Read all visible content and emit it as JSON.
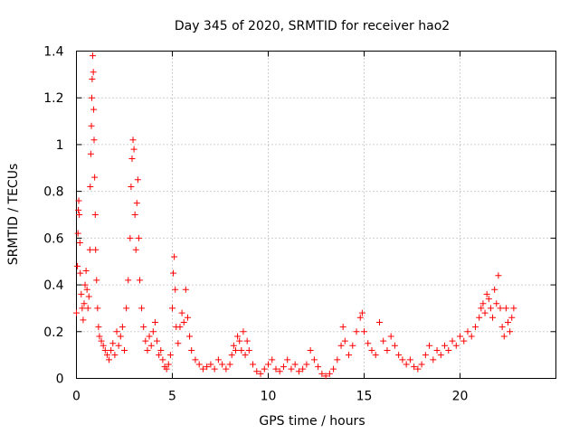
{
  "chart_data": {
    "type": "scatter",
    "title": "Day 345 of 2020, SRMTID for receiver hao2",
    "xlabel": "GPS time / hours",
    "ylabel": "SRMTID / TECUs",
    "xlim": [
      0,
      25
    ],
    "ylim": [
      0,
      1.4
    ],
    "x_ticks": [
      0,
      5,
      10,
      15,
      20
    ],
    "y_ticks": [
      0,
      0.2,
      0.4,
      0.6,
      0.8,
      1.0,
      1.2,
      1.4
    ],
    "x_tick_labels": [
      "0",
      "5",
      "10",
      "15",
      "20"
    ],
    "y_tick_labels": [
      "0",
      "0.2",
      "0.4",
      "0.6",
      "0.8",
      "1",
      "1.2",
      "1.4"
    ],
    "grid": true,
    "marker": "+",
    "color": "#ff0000",
    "series": [
      {
        "name": "SRMTID",
        "points": [
          [
            0.0,
            0.28
          ],
          [
            0.05,
            0.48
          ],
          [
            0.08,
            0.62
          ],
          [
            0.1,
            0.72
          ],
          [
            0.12,
            0.76
          ],
          [
            0.15,
            0.7
          ],
          [
            0.18,
            0.58
          ],
          [
            0.2,
            0.45
          ],
          [
            0.25,
            0.36
          ],
          [
            0.3,
            0.3
          ],
          [
            0.35,
            0.25
          ],
          [
            0.4,
            0.32
          ],
          [
            0.45,
            0.4
          ],
          [
            0.5,
            0.46
          ],
          [
            0.55,
            0.38
          ],
          [
            0.6,
            0.3
          ],
          [
            0.65,
            0.35
          ],
          [
            0.7,
            0.55
          ],
          [
            0.72,
            0.82
          ],
          [
            0.75,
            0.96
          ],
          [
            0.78,
            1.08
          ],
          [
            0.8,
            1.2
          ],
          [
            0.82,
            1.28
          ],
          [
            0.85,
            1.38
          ],
          [
            0.88,
            1.31
          ],
          [
            0.9,
            1.15
          ],
          [
            0.92,
            1.02
          ],
          [
            0.95,
            0.86
          ],
          [
            0.98,
            0.7
          ],
          [
            1.0,
            0.55
          ],
          [
            1.05,
            0.42
          ],
          [
            1.1,
            0.3
          ],
          [
            1.15,
            0.22
          ],
          [
            1.2,
            0.18
          ],
          [
            1.3,
            0.16
          ],
          [
            1.4,
            0.14
          ],
          [
            1.5,
            0.12
          ],
          [
            1.6,
            0.1
          ],
          [
            1.7,
            0.08
          ],
          [
            1.8,
            0.12
          ],
          [
            1.9,
            0.15
          ],
          [
            2.0,
            0.1
          ],
          [
            2.1,
            0.2
          ],
          [
            2.2,
            0.14
          ],
          [
            2.3,
            0.18
          ],
          [
            2.4,
            0.22
          ],
          [
            2.5,
            0.12
          ],
          [
            2.6,
            0.3
          ],
          [
            2.7,
            0.42
          ],
          [
            2.8,
            0.6
          ],
          [
            2.85,
            0.82
          ],
          [
            2.9,
            0.94
          ],
          [
            2.95,
            1.02
          ],
          [
            3.0,
            0.98
          ],
          [
            3.05,
            0.7
          ],
          [
            3.1,
            0.55
          ],
          [
            3.15,
            0.75
          ],
          [
            3.2,
            0.85
          ],
          [
            3.25,
            0.6
          ],
          [
            3.3,
            0.42
          ],
          [
            3.4,
            0.3
          ],
          [
            3.5,
            0.22
          ],
          [
            3.6,
            0.16
          ],
          [
            3.7,
            0.12
          ],
          [
            3.8,
            0.18
          ],
          [
            3.9,
            0.14
          ],
          [
            4.0,
            0.2
          ],
          [
            4.1,
            0.24
          ],
          [
            4.2,
            0.16
          ],
          [
            4.3,
            0.1
          ],
          [
            4.4,
            0.12
          ],
          [
            4.5,
            0.08
          ],
          [
            4.6,
            0.05
          ],
          [
            4.7,
            0.04
          ],
          [
            4.8,
            0.06
          ],
          [
            4.9,
            0.1
          ],
          [
            5.0,
            0.3
          ],
          [
            5.05,
            0.45
          ],
          [
            5.1,
            0.52
          ],
          [
            5.15,
            0.38
          ],
          [
            5.2,
            0.22
          ],
          [
            5.3,
            0.15
          ],
          [
            5.4,
            0.22
          ],
          [
            5.5,
            0.28
          ],
          [
            5.6,
            0.24
          ],
          [
            5.7,
            0.38
          ],
          [
            5.8,
            0.26
          ],
          [
            5.9,
            0.18
          ],
          [
            6.0,
            0.12
          ],
          [
            6.2,
            0.08
          ],
          [
            6.4,
            0.06
          ],
          [
            6.6,
            0.04
          ],
          [
            6.8,
            0.05
          ],
          [
            7.0,
            0.06
          ],
          [
            7.2,
            0.04
          ],
          [
            7.4,
            0.08
          ],
          [
            7.6,
            0.06
          ],
          [
            7.8,
            0.04
          ],
          [
            8.0,
            0.06
          ],
          [
            8.1,
            0.1
          ],
          [
            8.2,
            0.14
          ],
          [
            8.3,
            0.12
          ],
          [
            8.4,
            0.18
          ],
          [
            8.5,
            0.16
          ],
          [
            8.6,
            0.12
          ],
          [
            8.7,
            0.2
          ],
          [
            8.8,
            0.1
          ],
          [
            8.9,
            0.16
          ],
          [
            9.0,
            0.12
          ],
          [
            9.2,
            0.06
          ],
          [
            9.4,
            0.03
          ],
          [
            9.6,
            0.02
          ],
          [
            9.8,
            0.04
          ],
          [
            10.0,
            0.06
          ],
          [
            10.2,
            0.08
          ],
          [
            10.4,
            0.04
          ],
          [
            10.6,
            0.03
          ],
          [
            10.8,
            0.05
          ],
          [
            11.0,
            0.08
          ],
          [
            11.2,
            0.04
          ],
          [
            11.4,
            0.06
          ],
          [
            11.6,
            0.03
          ],
          [
            11.8,
            0.04
          ],
          [
            12.0,
            0.06
          ],
          [
            12.2,
            0.12
          ],
          [
            12.4,
            0.08
          ],
          [
            12.6,
            0.05
          ],
          [
            12.8,
            0.02
          ],
          [
            13.0,
            0.01
          ],
          [
            13.2,
            0.02
          ],
          [
            13.4,
            0.04
          ],
          [
            13.6,
            0.08
          ],
          [
            13.8,
            0.14
          ],
          [
            13.9,
            0.22
          ],
          [
            14.0,
            0.16
          ],
          [
            14.2,
            0.1
          ],
          [
            14.4,
            0.14
          ],
          [
            14.6,
            0.2
          ],
          [
            14.8,
            0.26
          ],
          [
            14.9,
            0.28
          ],
          [
            15.0,
            0.2
          ],
          [
            15.2,
            0.15
          ],
          [
            15.4,
            0.12
          ],
          [
            15.6,
            0.1
          ],
          [
            15.8,
            0.24
          ],
          [
            16.0,
            0.16
          ],
          [
            16.2,
            0.12
          ],
          [
            16.4,
            0.18
          ],
          [
            16.6,
            0.14
          ],
          [
            16.8,
            0.1
          ],
          [
            17.0,
            0.08
          ],
          [
            17.2,
            0.06
          ],
          [
            17.4,
            0.08
          ],
          [
            17.6,
            0.05
          ],
          [
            17.8,
            0.04
          ],
          [
            18.0,
            0.06
          ],
          [
            18.2,
            0.1
          ],
          [
            18.4,
            0.14
          ],
          [
            18.6,
            0.08
          ],
          [
            18.8,
            0.12
          ],
          [
            19.0,
            0.1
          ],
          [
            19.2,
            0.14
          ],
          [
            19.4,
            0.12
          ],
          [
            19.6,
            0.16
          ],
          [
            19.8,
            0.14
          ],
          [
            20.0,
            0.18
          ],
          [
            20.2,
            0.16
          ],
          [
            20.4,
            0.2
          ],
          [
            20.6,
            0.18
          ],
          [
            20.8,
            0.22
          ],
          [
            21.0,
            0.26
          ],
          [
            21.1,
            0.3
          ],
          [
            21.2,
            0.32
          ],
          [
            21.3,
            0.28
          ],
          [
            21.4,
            0.36
          ],
          [
            21.5,
            0.34
          ],
          [
            21.6,
            0.3
          ],
          [
            21.7,
            0.26
          ],
          [
            21.8,
            0.38
          ],
          [
            21.9,
            0.32
          ],
          [
            22.0,
            0.44
          ],
          [
            22.1,
            0.3
          ],
          [
            22.2,
            0.22
          ],
          [
            22.3,
            0.18
          ],
          [
            22.4,
            0.3
          ],
          [
            22.5,
            0.24
          ],
          [
            22.6,
            0.2
          ],
          [
            22.7,
            0.26
          ],
          [
            22.8,
            0.3
          ]
        ]
      }
    ]
  }
}
